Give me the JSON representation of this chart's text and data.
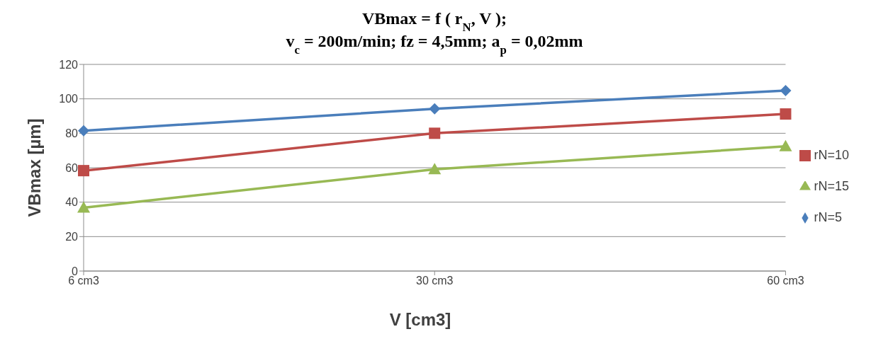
{
  "chart_data": {
    "type": "line",
    "title": "VBmax = f ( r$_{N}$, V );",
    "subtitle": "v$_{c}$ = 200m/min; fz = 4,5mm; a$_{p}$ = 0,02mm",
    "xlabel": "V [cm3]",
    "ylabel": "VBmax [µm]",
    "categories": [
      "6 cm3",
      "30 cm3",
      "60 cm3"
    ],
    "series": [
      {
        "name": "rN=5",
        "color": "#4a7ebb",
        "marker": "diamond",
        "values": [
          81.5,
          94.2,
          104.8
        ]
      },
      {
        "name": "rN=10",
        "color": "#be4b48",
        "marker": "square",
        "values": [
          58.3,
          80,
          91.2
        ]
      },
      {
        "name": "rN=15",
        "color": "#98b954",
        "marker": "triangle",
        "values": [
          36.8,
          59.1,
          72.4
        ]
      }
    ],
    "ylim": [
      0,
      120
    ],
    "yticks": [
      0,
      20,
      40,
      60,
      80,
      100,
      120
    ],
    "grid": "y",
    "legend": "right"
  }
}
